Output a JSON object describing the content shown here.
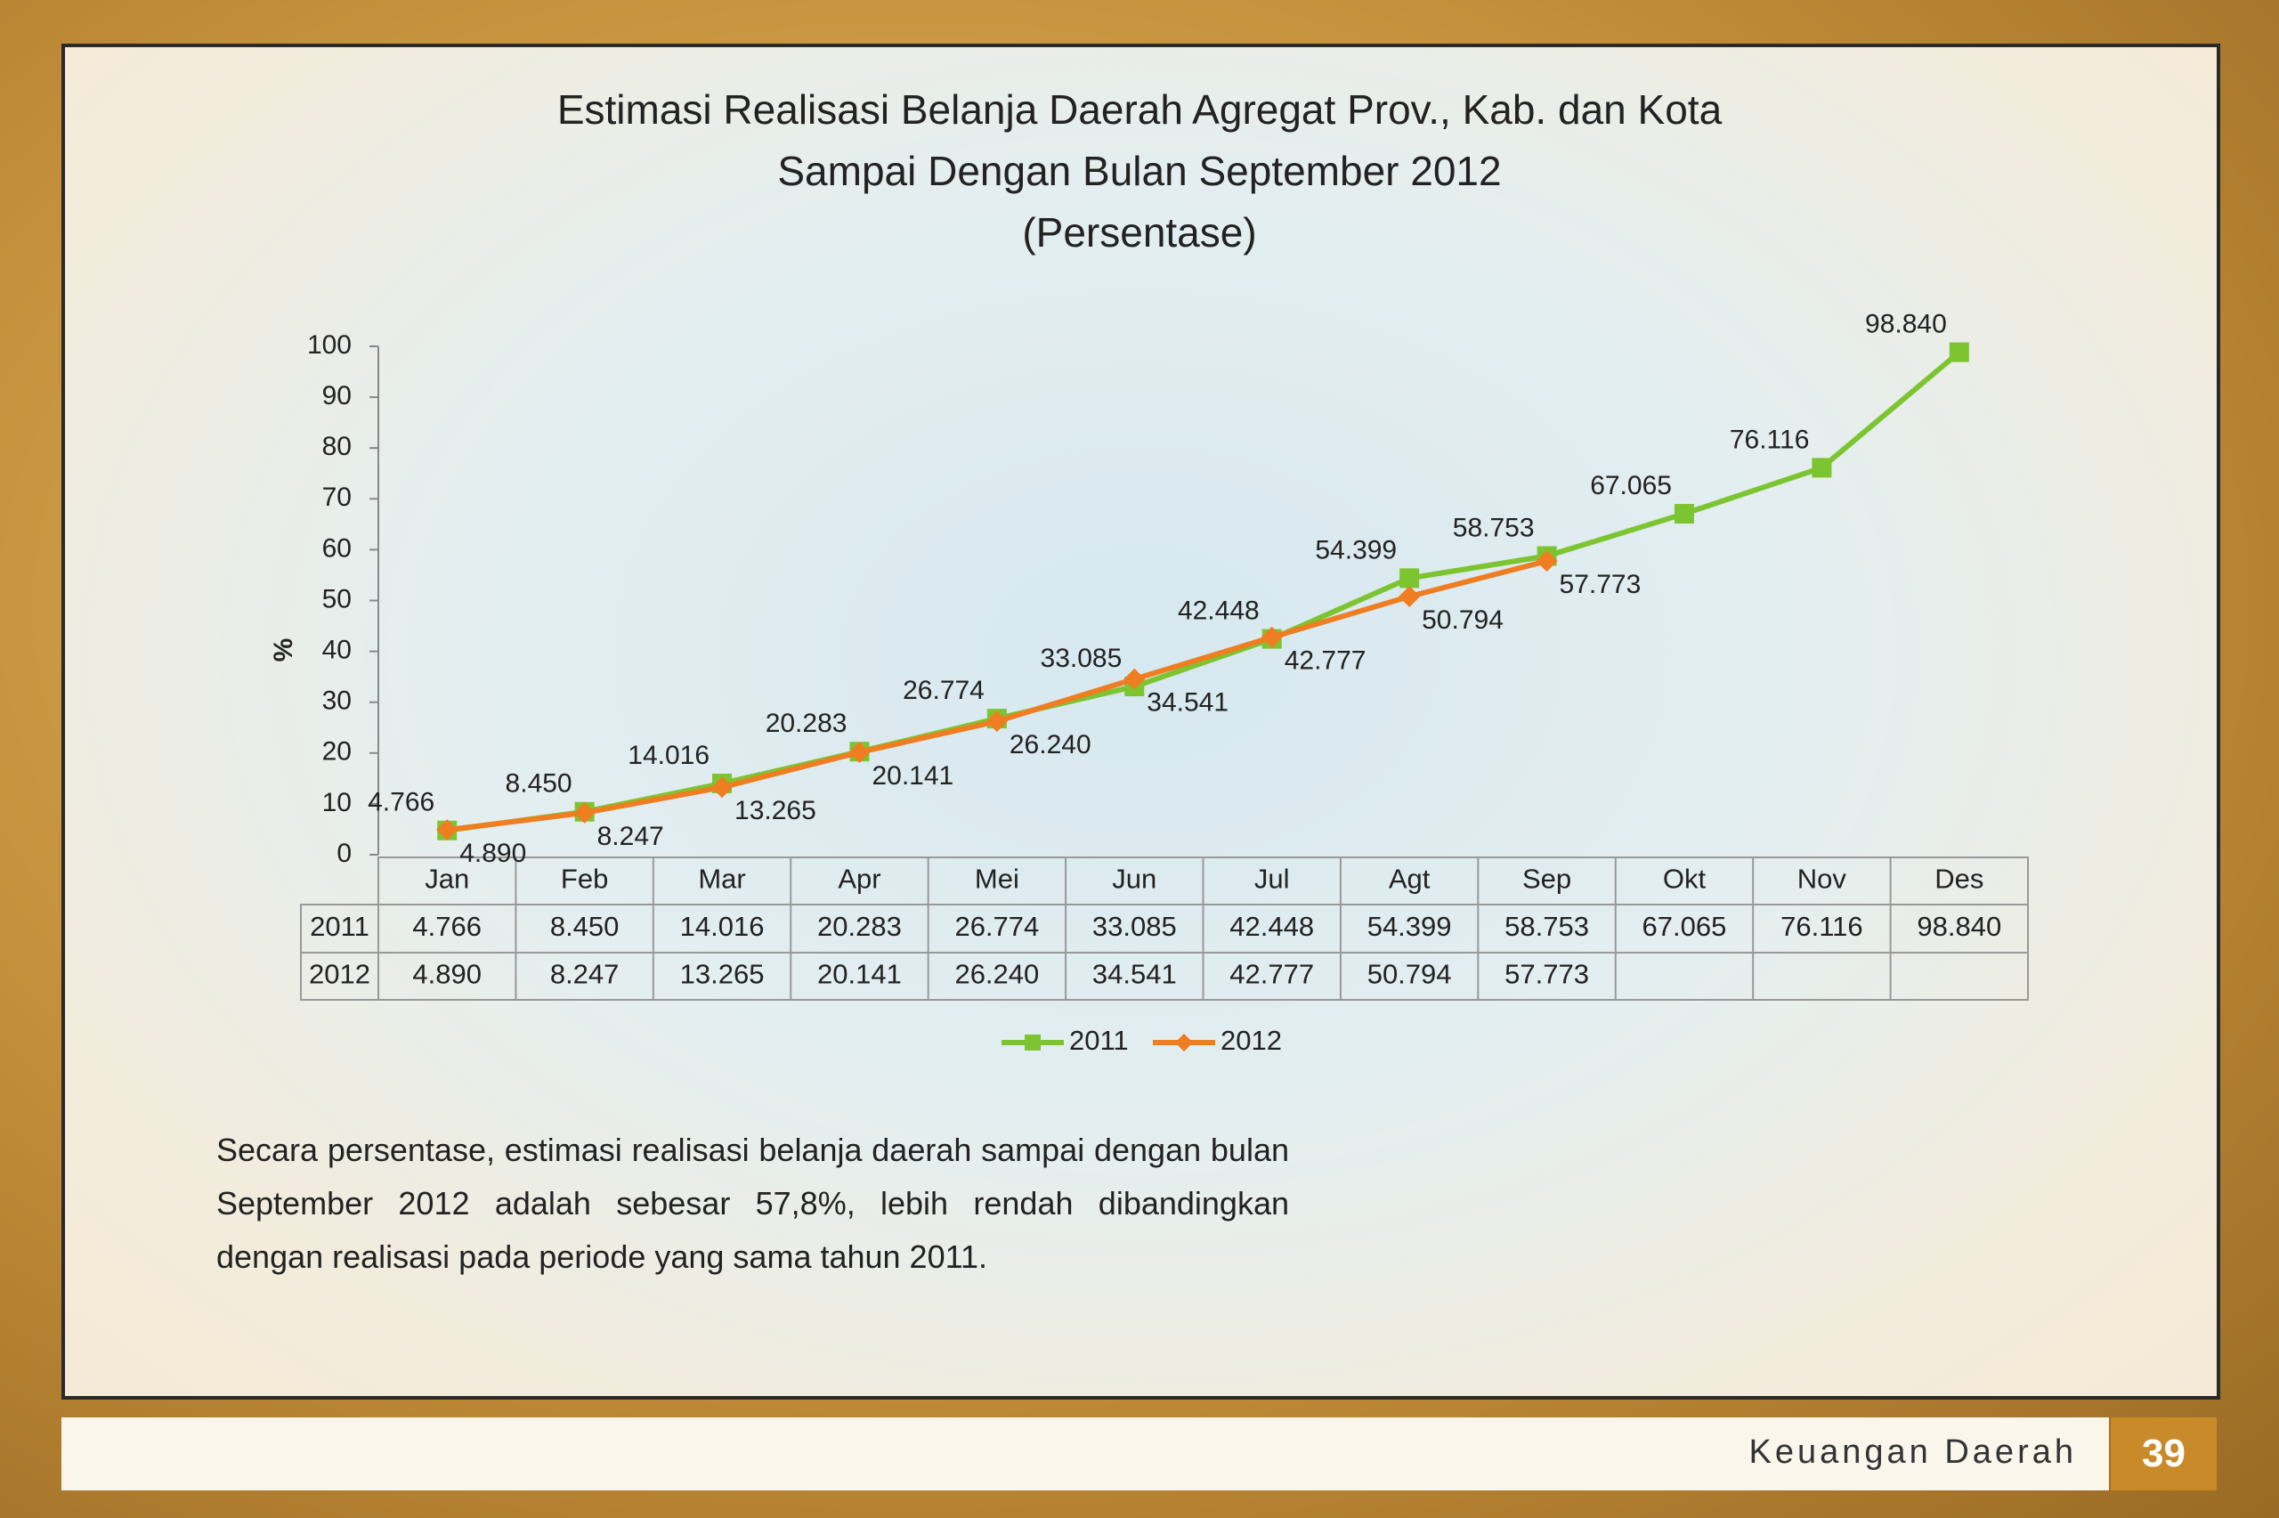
{
  "chart_data": {
    "type": "line",
    "title": [
      "Estimasi Realisasi Belanja Daerah Agregat Prov., Kab. dan Kota",
      "Sampai Dengan Bulan September 2012",
      "(Persentase)"
    ],
    "y_label": "%",
    "categories": [
      "Jan",
      "Feb",
      "Mar",
      "Apr",
      "Mei",
      "Jun",
      "Jul",
      "Agt",
      "Sep",
      "Okt",
      "Nov",
      "Des"
    ],
    "series": [
      {
        "name": "2011",
        "color": "#7cc531",
        "values": [
          4.766,
          8.45,
          14.016,
          20.283,
          26.774,
          33.085,
          42.448,
          54.399,
          58.753,
          67.065,
          76.116,
          98.84
        ],
        "value_labels": [
          "4.766",
          "8.450",
          "14.016",
          "20.283",
          "26.774",
          "33.085",
          "42.448",
          "54.399",
          "58.753",
          "67.065",
          "76.116",
          "98.840"
        ]
      },
      {
        "name": "2012",
        "color": "#ef7d22",
        "values": [
          4.89,
          8.247,
          13.265,
          20.141,
          26.24,
          34.541,
          42.777,
          50.794,
          57.773,
          null,
          null,
          null
        ],
        "value_labels": [
          "4.890",
          "8.247",
          "13.265",
          "20.141",
          "26.240",
          "34.541",
          "42.777",
          "50.794",
          "57.773",
          null,
          null,
          null
        ]
      }
    ],
    "ylim": [
      0,
      100
    ],
    "yticks": [
      0,
      10,
      20,
      30,
      40,
      50,
      60,
      70,
      80,
      90,
      100
    ],
    "grid": false,
    "legend": "bottom"
  },
  "paragraph": "Secara persentase, estimasi realisasi belanja daerah sampai dengan bulan September 2012 adalah sebesar 57,8%, lebih rendah dibandingkan dengan realisasi pada periode yang sama tahun 2011.",
  "footer": {
    "section": "Keuangan Daerah",
    "page": "39"
  }
}
